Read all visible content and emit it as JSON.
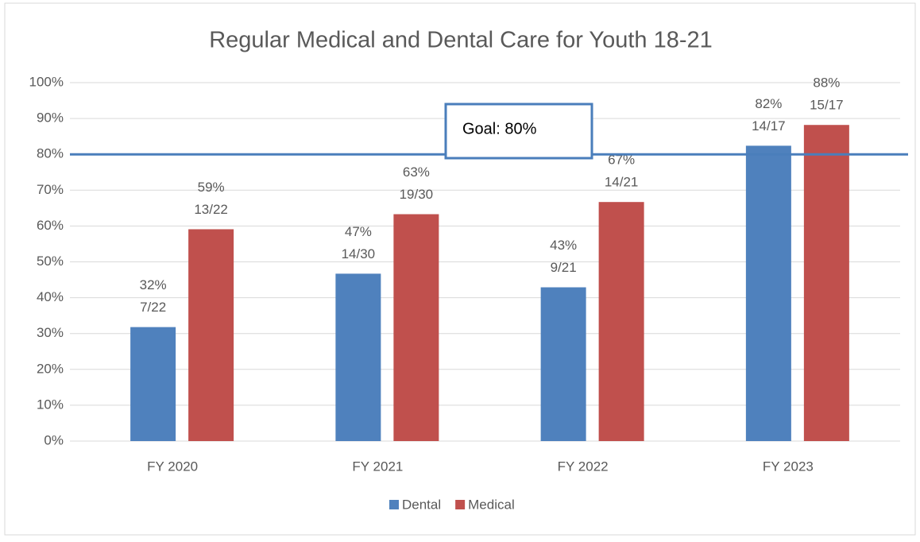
{
  "chart_data": {
    "type": "bar",
    "title": "Regular Medical and Dental Care for Youth 18-21",
    "categories": [
      "FY 2020",
      "FY 2021",
      "FY 2022",
      "FY 2023"
    ],
    "series": [
      {
        "name": "Dental",
        "color": "#4f81bd",
        "values": [
          31.8,
          46.7,
          42.9,
          82.4
        ],
        "value_labels": [
          "32%",
          "47%",
          "43%",
          "82%"
        ],
        "value_fractions": [
          "7/22",
          "14/30",
          "9/21",
          "14/17"
        ]
      },
      {
        "name": "Medical",
        "color": "#c0504d",
        "values": [
          59.1,
          63.3,
          66.7,
          88.2
        ],
        "value_labels": [
          "59%",
          "63%",
          "67%",
          "88%"
        ],
        "value_fractions": [
          "13/22",
          "19/30",
          "14/21",
          "15/17"
        ]
      }
    ],
    "ylim": [
      0,
      100
    ],
    "yticks": [
      {
        "value": 0,
        "label": "0%"
      },
      {
        "value": 10,
        "label": "10%"
      },
      {
        "value": 20,
        "label": "20%"
      },
      {
        "value": 30,
        "label": "30%"
      },
      {
        "value": 40,
        "label": "40%"
      },
      {
        "value": 50,
        "label": "50%"
      },
      {
        "value": 60,
        "label": "60%"
      },
      {
        "value": 70,
        "label": "70%"
      },
      {
        "value": 80,
        "label": "80%"
      },
      {
        "value": 90,
        "label": "90%"
      },
      {
        "value": 100,
        "label": "100%"
      }
    ],
    "grid": true,
    "legend": "bottom",
    "goal": {
      "value": 80,
      "label": "Goal: 80%",
      "color": "#4a7ebb"
    }
  }
}
